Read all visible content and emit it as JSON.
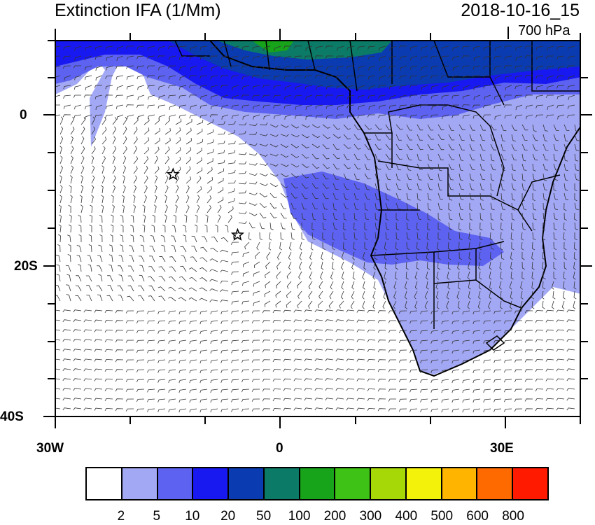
{
  "header": {
    "title": "Extinction IFA (1/Mm)",
    "date": "2018-10-16_15",
    "level": "700 hPa"
  },
  "axes": {
    "y_labels": [
      "0",
      "20S",
      "40S"
    ],
    "x_labels": [
      "30W",
      "0",
      "30E"
    ]
  },
  "colorbar": {
    "colors": [
      "#ffffff",
      "#a3a8f5",
      "#5d63f0",
      "#1818f0",
      "#0a3bb0",
      "#0b7a66",
      "#17a31a",
      "#3ec215",
      "#a6d808",
      "#f2f20a",
      "#ffb400",
      "#ff6a00",
      "#ff1a00"
    ],
    "labels": [
      "2",
      "5",
      "10",
      "20",
      "50",
      "100",
      "200",
      "300",
      "400",
      "500",
      "600",
      "800"
    ]
  },
  "markers": [
    {
      "name": "star",
      "lon": -14.3,
      "lat": -7.9
    },
    {
      "name": "star",
      "lon": -5.7,
      "lat": -15.9
    }
  ]
}
